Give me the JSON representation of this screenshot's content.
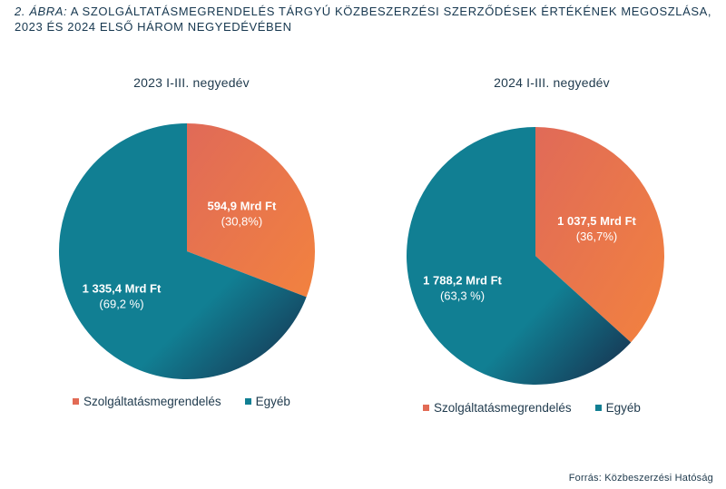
{
  "figure": {
    "title_prefix": "2. ÁBRA:",
    "title_text": "A szolgáltatásmegrendelés tárgyú közbeszerzési szerződések értékének megoszlá­sa, 2023 és 2024 első három negyedévében",
    "source": "Forrás: Közbeszerzési Hatóság"
  },
  "colors": {
    "szolgaltatas_start": "#e06a58",
    "szolgaltatas_end": "#f2823f",
    "egyeb_start": "#117f93",
    "egyeb_end": "#163e5a"
  },
  "chart_data": [
    {
      "type": "pie",
      "title": "2023 I-III. negyedév",
      "categories": [
        "Szolgáltatásmegrendelés",
        "Egyéb"
      ],
      "values": [
        594.9,
        1335.4
      ],
      "percent": [
        30.8,
        69.2
      ],
      "value_labels": [
        "594,9 Mrd Ft",
        "1 335,4 Mrd Ft"
      ],
      "percent_labels": [
        "(30,8%)",
        "(69,2 %)"
      ],
      "legend": "bottom"
    },
    {
      "type": "pie",
      "title": "2024 I-III. negyedév",
      "categories": [
        "Szolgáltatásmegrendelés",
        "Egyéb"
      ],
      "values": [
        1037.5,
        1788.2
      ],
      "percent": [
        36.7,
        63.3
      ],
      "value_labels": [
        "1 037,5 Mrd Ft",
        "1 788,2 Mrd Ft"
      ],
      "percent_labels": [
        "(36,7%)",
        "(63,3 %)"
      ],
      "legend": "bottom"
    }
  ]
}
